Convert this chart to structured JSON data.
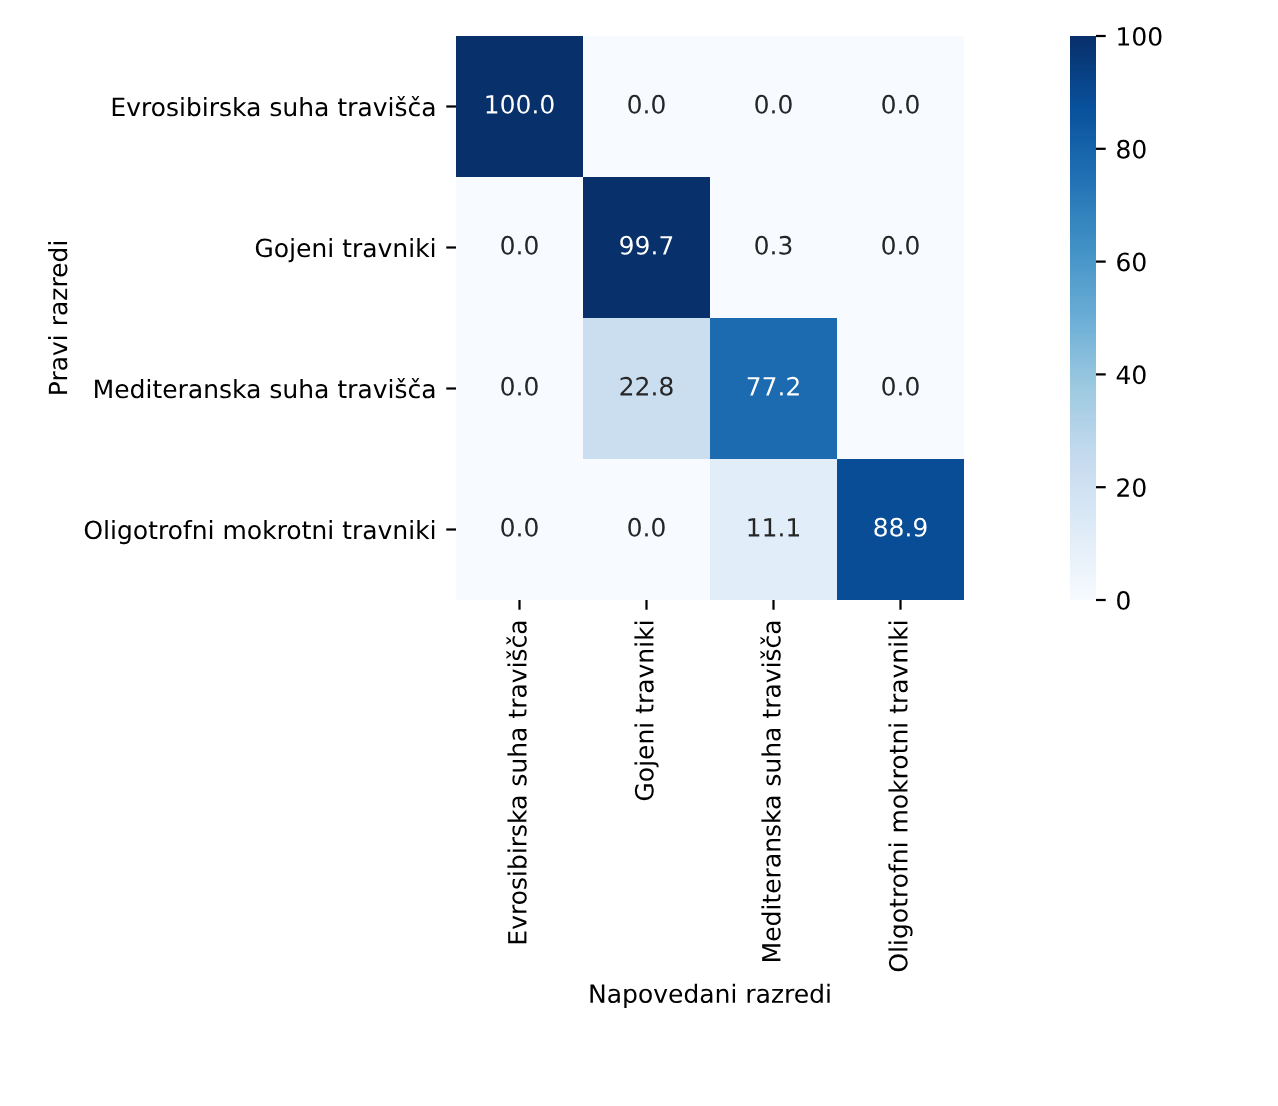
{
  "chart_data": {
    "type": "heatmap",
    "xlabel": "Napovedani razredi",
    "ylabel": "Pravi razredi",
    "categories": [
      "Evrosibirska suha travišča",
      "Gojeni travniki",
      "Mediteranska suha travišča",
      "Oligotrofni mokrotni travniki"
    ],
    "y_categories": [
      "Evrosibirska suha travišča",
      "Gojeni travniki",
      "Mediteranska suha travišča",
      "Oligotrofni mokrotni travniki"
    ],
    "cells": [
      [
        100.0,
        0.0,
        0.0,
        0.0
      ],
      [
        0.0,
        99.7,
        0.3,
        0.0
      ],
      [
        0.0,
        22.8,
        77.2,
        0.0
      ],
      [
        0.0,
        0.0,
        11.1,
        88.9
      ]
    ],
    "cell_labels": [
      [
        "100.0",
        "0.0",
        "0.0",
        "0.0"
      ],
      [
        "0.0",
        "99.7",
        "0.3",
        "0.0"
      ],
      [
        "0.0",
        "22.8",
        "77.2",
        "0.0"
      ],
      [
        "0.0",
        "0.0",
        "11.1",
        "88.9"
      ]
    ],
    "clim": [
      0,
      100
    ],
    "cticks": [
      0,
      20,
      40,
      60,
      80,
      100
    ]
  }
}
